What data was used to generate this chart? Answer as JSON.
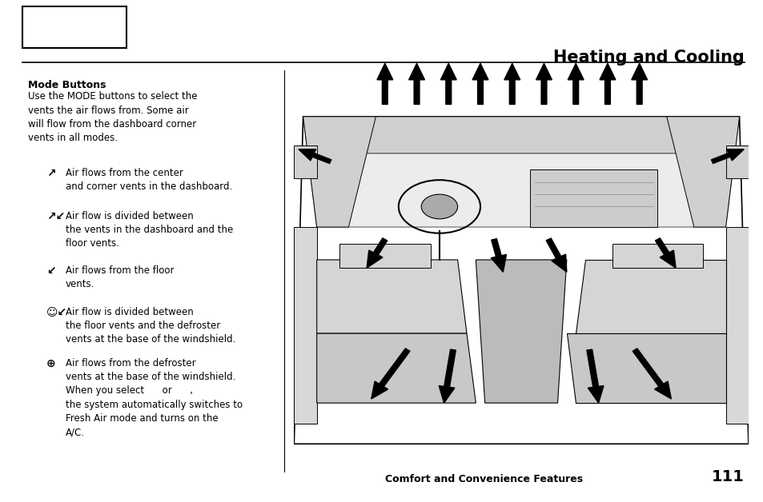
{
  "title": "Heating and Cooling",
  "title_fontsize": 15,
  "footer_text": "Comfort and Convenience Features",
  "footer_page": "111",
  "section_header": "Mode Buttons",
  "body_lines": [
    "Use the MODE buttons to select the",
    "vents the air flows from. Some air",
    "will flow from the dashboard corner",
    "vents in all modes."
  ],
  "entry1_text": "Air flows from the center\nand corner vents in the dashboard.",
  "entry2_text": "Air flow is divided between\nthe vents in the dashboard and the\nfloor vents.",
  "entry3_text": "Air flows from the floor\nvents.",
  "entry4_text": "Air flow is divided between\nthe floor vents and the defroster\nvents at the base of the windshield.",
  "entry5_text": "Air flows from the defroster\nvents at the base of the windshield.\nWhen you select      or      ,\nthe system automatically switches to\nFresh Air mode and turns on the\nA/C.",
  "bg_color": "#ffffff",
  "text_color": "#000000"
}
